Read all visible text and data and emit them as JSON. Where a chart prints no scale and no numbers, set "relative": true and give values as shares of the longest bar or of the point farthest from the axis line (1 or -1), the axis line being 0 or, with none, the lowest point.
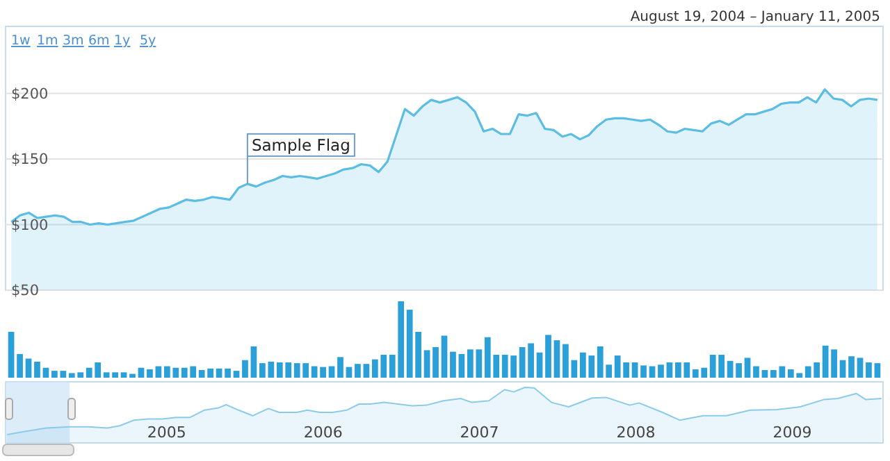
{
  "chart_data": [
    {
      "type": "area",
      "subtitle": "August 19, 2004 – January 11, 2005",
      "categories": [
        null,
        null,
        null,
        null,
        null,
        null,
        null,
        null,
        null,
        null,
        null,
        null,
        null,
        null,
        null,
        null,
        null,
        null,
        null,
        null,
        null,
        null,
        null,
        null,
        null,
        null,
        null,
        null,
        null,
        null,
        null,
        null,
        null,
        null,
        null,
        null,
        null,
        null,
        null,
        null,
        null,
        null,
        null,
        null,
        null,
        null,
        null,
        null,
        null,
        null,
        null,
        null,
        null,
        null,
        null,
        null,
        null,
        null,
        null,
        null,
        null,
        null,
        null,
        null,
        null,
        null,
        null,
        null,
        null,
        null,
        null,
        null,
        null,
        null,
        null,
        null,
        null,
        null,
        null,
        null,
        null,
        null,
        null,
        null,
        null,
        null,
        null,
        null,
        null,
        null,
        null,
        null,
        null,
        null,
        null,
        null,
        null,
        null,
        null,
        null
      ],
      "values": [
        102,
        107,
        109,
        105,
        106,
        107,
        106,
        102,
        102,
        100,
        101,
        100,
        101,
        102,
        103,
        106,
        109,
        112,
        113,
        116,
        119,
        118,
        119,
        121,
        120,
        119,
        128,
        131,
        129,
        132,
        134,
        137,
        136,
        137,
        136,
        135,
        137,
        139,
        142,
        143,
        146,
        145,
        140,
        148,
        168,
        188,
        183,
        190,
        195,
        193,
        195,
        197,
        193,
        186,
        171,
        173,
        169,
        169,
        184,
        183,
        185,
        173,
        172,
        167,
        169,
        165,
        168,
        175,
        180,
        181,
        181,
        180,
        179,
        180,
        176,
        171,
        170,
        173,
        172,
        171,
        177,
        179,
        176,
        180,
        184,
        184,
        186,
        188,
        192,
        193,
        193,
        197,
        193,
        203,
        196,
        195,
        190,
        195,
        196,
        195
      ],
      "color": "#5bbde4",
      "ylim": [
        50,
        251
      ],
      "yticks": [
        {
          "value": 50,
          "label": "$50"
        },
        {
          "value": 100,
          "label": "$100"
        },
        {
          "value": 150,
          "label": "$150"
        },
        {
          "value": 200,
          "label": "$200"
        }
      ],
      "grid": "y",
      "annotations": [
        {
          "text": "Sample Flag",
          "y": 131
        },
        "1w",
        "1m",
        "3m",
        "6m",
        "1y",
        "5y"
      ]
    },
    {
      "type": "bar",
      "relative": true,
      "color": "#2a9fd8",
      "categories": [
        null,
        null,
        null,
        null,
        null,
        null,
        null,
        null,
        null,
        null,
        null,
        null,
        null,
        null,
        null,
        null,
        null,
        null,
        null,
        null,
        null,
        null,
        null,
        null,
        null,
        null,
        null,
        null,
        null,
        null,
        null,
        null,
        null,
        null,
        null,
        null,
        null,
        null,
        null,
        null,
        null,
        null,
        null,
        null,
        null,
        null,
        null,
        null,
        null,
        null,
        null,
        null,
        null,
        null,
        null,
        null,
        null,
        null,
        null,
        null,
        null,
        null,
        null,
        null,
        null,
        null,
        null,
        null,
        null,
        null,
        null,
        null,
        null,
        null,
        null,
        null,
        null,
        null,
        null,
        null,
        null,
        null,
        null,
        null,
        null,
        null,
        null,
        null,
        null,
        null,
        null,
        null,
        null,
        null,
        null,
        null,
        null,
        null,
        null,
        null,
        null
      ],
      "values": [
        0.6,
        0.31,
        0.25,
        0.21,
        0.13,
        0.09,
        0.09,
        0.06,
        0.07,
        0.13,
        0.2,
        0.07,
        0.07,
        0.07,
        0.05,
        0.13,
        0.11,
        0.15,
        0.15,
        0.13,
        0.13,
        0.15,
        0.1,
        0.12,
        0.12,
        0.12,
        0.09,
        0.23,
        0.41,
        0.19,
        0.21,
        0.2,
        0.2,
        0.19,
        0.19,
        0.15,
        0.14,
        0.15,
        0.27,
        0.14,
        0.18,
        0.18,
        0.24,
        0.3,
        0.3,
        1,
        0.89,
        0.6,
        0.36,
        0.4,
        0.55,
        0.34,
        0.31,
        0.37,
        0.37,
        0.53,
        0.3,
        0.3,
        0.29,
        0.4,
        0.45,
        0.33,
        0.56,
        0.49,
        0.44,
        0.23,
        0.33,
        0.29,
        0.41,
        0.17,
        0.29,
        0.2,
        0.2,
        0.16,
        0.15,
        0.17,
        0.2,
        0.2,
        0.2,
        0.11,
        0.13,
        0.3,
        0.3,
        0.22,
        0.19,
        0.26,
        0.15,
        0.1,
        0.1,
        0.15,
        0.11,
        0.06,
        0.15,
        0.2,
        0.42,
        0.37,
        0.23,
        0.28,
        0.26,
        0.2,
        0.19
      ]
    },
    {
      "type": "area",
      "relative": true,
      "color": "#8ccbe8",
      "tick_labels": "x",
      "bands": [
        {
          "axis": "x",
          "from": 2003.97,
          "to": 2004.38,
          "color": "#cfe4f7"
        }
      ],
      "xlim": [
        2003.97,
        2009.58
      ],
      "xticks": [
        2005,
        2006,
        2007,
        2008,
        2009
      ],
      "x": [
        2003.98,
        2004.08,
        2004.23,
        2004.38,
        2004.5,
        2004.62,
        2004.7,
        2004.79,
        2004.88,
        2004.97,
        2005.06,
        2005.15,
        2005.24,
        2005.33,
        2005.38,
        2005.46,
        2005.55,
        2005.65,
        2005.72,
        2005.83,
        2005.9,
        2005.98,
        2006.06,
        2006.15,
        2006.23,
        2006.3,
        2006.39,
        2006.48,
        2006.57,
        2006.66,
        2006.77,
        2006.88,
        2006.95,
        2007.06,
        2007.16,
        2007.22,
        2007.29,
        2007.35,
        2007.46,
        2007.57,
        2007.72,
        2007.81,
        2007.96,
        2008.02,
        2008.17,
        2008.28,
        2008.43,
        2008.58,
        2008.73,
        2008.9,
        2009.05,
        2009.2,
        2009.29,
        2009.41,
        2009.47,
        2009.57
      ],
      "values": [
        0.15,
        0.2,
        0.27,
        0.29,
        0.29,
        0.27,
        0.31,
        0.41,
        0.43,
        0.43,
        0.46,
        0.46,
        0.59,
        0.63,
        0.69,
        0.59,
        0.49,
        0.62,
        0.55,
        0.55,
        0.59,
        0.55,
        0.55,
        0.59,
        0.7,
        0.7,
        0.73,
        0.7,
        0.67,
        0.68,
        0.76,
        0.8,
        0.73,
        0.76,
        0.96,
        0.92,
        1,
        0.99,
        0.73,
        0.65,
        0.81,
        0.82,
        0.68,
        0.72,
        0.55,
        0.41,
        0.49,
        0.49,
        0.59,
        0.6,
        0.65,
        0.78,
        0.8,
        0.89,
        0.78,
        0.8
      ]
    }
  ]
}
